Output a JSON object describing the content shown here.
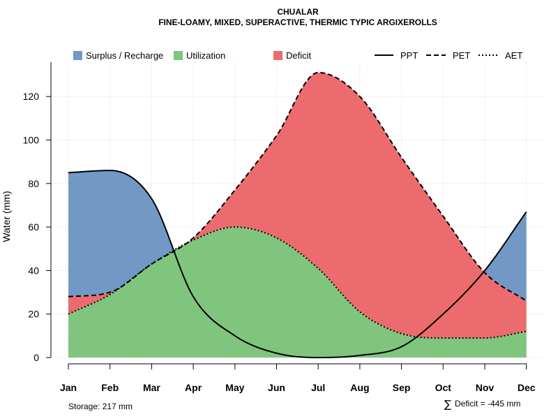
{
  "chart_data": {
    "type": "area",
    "title": "CHUALAR",
    "subtitle": "FINE-LOAMY, MIXED, SUPERACTIVE, THERMIC TYPIC ARGIXEROLLS",
    "xlabel": "",
    "ylabel": "Water (mm)",
    "ylim": [
      0,
      135
    ],
    "yticks": [
      0,
      20,
      40,
      60,
      80,
      100,
      120
    ],
    "grid": true,
    "legend_position": "top",
    "categories": [
      "Jan",
      "Feb",
      "Mar",
      "Apr",
      "May",
      "Jun",
      "Jul",
      "Aug",
      "Sep",
      "Oct",
      "Nov",
      "Dec"
    ],
    "series": [
      {
        "name": "PPT",
        "line_style": "solid",
        "values": [
          85,
          86,
          73,
          28,
          10,
          2,
          0,
          1,
          5,
          20,
          40,
          67
        ]
      },
      {
        "name": "PET",
        "line_style": "dashed",
        "values": [
          28,
          30,
          43,
          55,
          77,
          102,
          131,
          120,
          92,
          65,
          39,
          26
        ]
      },
      {
        "name": "AET",
        "line_style": "dotted",
        "values": [
          20,
          29,
          43,
          54,
          60,
          55,
          41,
          21,
          11,
          9,
          9,
          12
        ]
      }
    ],
    "areas": [
      {
        "name": "Surplus / Recharge",
        "color": "#7299C6"
      },
      {
        "name": "Utilization",
        "color": "#7FC57D"
      },
      {
        "name": "Deficit",
        "color": "#EC6B6E"
      }
    ],
    "annotations": {
      "storage": "Storage: 217 mm",
      "deficit_symbol": "∑",
      "deficit": "Deficit = -445 mm"
    }
  }
}
